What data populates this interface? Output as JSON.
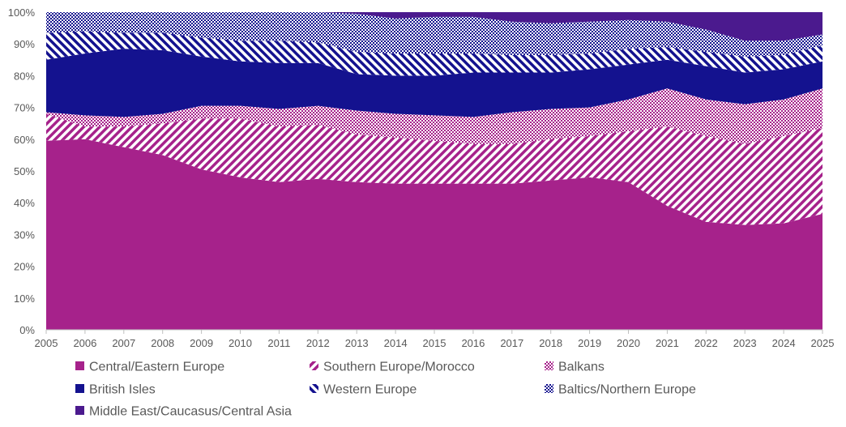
{
  "chart_data": {
    "type": "area",
    "stacked": true,
    "x": [
      "2005",
      "2006",
      "2007",
      "2008",
      "2009",
      "2010",
      "2011",
      "2012",
      "2013",
      "2014",
      "2015",
      "2016",
      "2017",
      "2018",
      "2019",
      "2020",
      "2021",
      "2022",
      "2023",
      "2024",
      "2025"
    ],
    "ylim": [
      0,
      100
    ],
    "yticks": [
      "0%",
      "10%",
      "20%",
      "30%",
      "40%",
      "50%",
      "60%",
      "70%",
      "80%",
      "90%",
      "100%"
    ],
    "legend_position": "bottom",
    "grid": false,
    "series": [
      {
        "name": "Central/Eastern Europe",
        "color": "#A6228B",
        "pattern": "solid",
        "values": [
          59.5,
          60,
          57.5,
          55,
          50.5,
          48,
          46.5,
          47.5,
          46.5,
          46,
          46,
          46,
          46,
          47,
          48,
          46.5,
          39,
          34,
          33,
          33.5,
          36.5
        ]
      },
      {
        "name": "Southern Europe/Morocco",
        "color": "#A6228B",
        "pattern": "diagonal",
        "values": [
          8.5,
          4,
          6.5,
          10,
          16,
          18.5,
          17.5,
          17,
          15,
          14.5,
          13.5,
          12.5,
          12.5,
          13,
          13,
          16,
          25,
          27,
          25.5,
          27.5,
          27
        ]
      },
      {
        "name": "Balkans",
        "color": "#A6228B",
        "pattern": "checker",
        "values": [
          0.5,
          3.5,
          3,
          3,
          4,
          4,
          5.5,
          6,
          7.5,
          7.5,
          8,
          8.5,
          10,
          9.5,
          9,
          10,
          12,
          11.5,
          12.5,
          11.5,
          12.5
        ]
      },
      {
        "name": "British Isles",
        "color": "#14128F",
        "pattern": "solid",
        "values": [
          16.5,
          19.5,
          21.5,
          20,
          15.5,
          14,
          14.5,
          13.5,
          11.5,
          12,
          12.5,
          14,
          12.5,
          11.5,
          12,
          11,
          9,
          10.5,
          10,
          9.5,
          8.5
        ]
      },
      {
        "name": "Western Europe",
        "color": "#14128F",
        "pattern": "reverse-diagonal",
        "values": [
          8.5,
          7,
          5,
          5.5,
          6,
          6.5,
          7,
          6.5,
          7,
          7,
          7,
          6,
          5.5,
          5.5,
          5,
          5,
          4,
          4.5,
          5,
          4.5,
          5
        ]
      },
      {
        "name": "Baltics/Northern Europe",
        "color": "#14128F",
        "pattern": "checker",
        "values": [
          6.5,
          6,
          6.5,
          6.5,
          8,
          9,
          9,
          9.5,
          12,
          11,
          11.5,
          11.5,
          10.5,
          10,
          10,
          9,
          8,
          7,
          5,
          4.5,
          3.5
        ]
      },
      {
        "name": "Middle East/Caucasus/Central Asia",
        "color": "#4B1A8E",
        "pattern": "solid",
        "values": [
          0,
          0,
          0,
          0,
          0,
          0,
          0,
          0,
          0.5,
          2,
          1.5,
          1.5,
          3,
          3.5,
          3,
          2.5,
          3,
          5.5,
          9,
          9,
          7
        ]
      }
    ]
  }
}
